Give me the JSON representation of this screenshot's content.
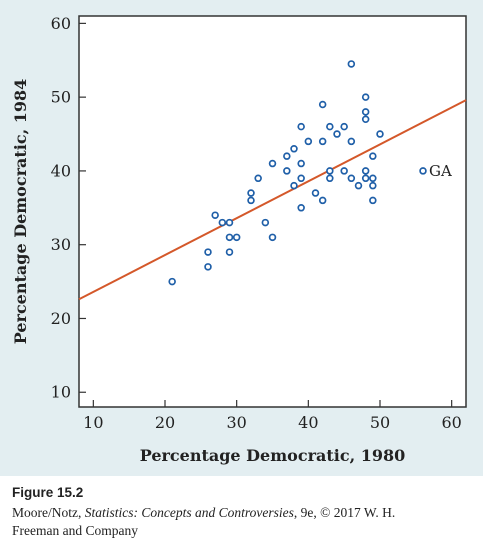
{
  "chart_data": {
    "type": "scatter",
    "xlabel": "Percentage Democratic, 1980",
    "ylabel": "Percentage Democratic, 1984",
    "xlim": [
      8,
      62
    ],
    "ylim": [
      8,
      61
    ],
    "xticks": [
      10,
      20,
      30,
      40,
      50,
      60
    ],
    "yticks": [
      10,
      20,
      30,
      40,
      50,
      60
    ],
    "grid": false,
    "point_color": "#1f5fa8",
    "line_color": "#d4582a",
    "points": [
      [
        21,
        25
      ],
      [
        26,
        27
      ],
      [
        26,
        29
      ],
      [
        27,
        34
      ],
      [
        28,
        33
      ],
      [
        29,
        33
      ],
      [
        29,
        31
      ],
      [
        29,
        29
      ],
      [
        30,
        31
      ],
      [
        32,
        37
      ],
      [
        32,
        36
      ],
      [
        33,
        39
      ],
      [
        34,
        33
      ],
      [
        35,
        31
      ],
      [
        35,
        41
      ],
      [
        37,
        42
      ],
      [
        37,
        40
      ],
      [
        38,
        43
      ],
      [
        38,
        38
      ],
      [
        39,
        46
      ],
      [
        39,
        41
      ],
      [
        39,
        39
      ],
      [
        39,
        35
      ],
      [
        40,
        44
      ],
      [
        41,
        37
      ],
      [
        42,
        49
      ],
      [
        42,
        44
      ],
      [
        42,
        36
      ],
      [
        43,
        46
      ],
      [
        43,
        40
      ],
      [
        43,
        39
      ],
      [
        44,
        45
      ],
      [
        45,
        46
      ],
      [
        45,
        40
      ],
      [
        46,
        54.5
      ],
      [
        46,
        44
      ],
      [
        46,
        39
      ],
      [
        47,
        38
      ],
      [
        48,
        50
      ],
      [
        48,
        48
      ],
      [
        48,
        47
      ],
      [
        48,
        40
      ],
      [
        48,
        39
      ],
      [
        49,
        42
      ],
      [
        49,
        39
      ],
      [
        49,
        38
      ],
      [
        49,
        36
      ],
      [
        50,
        45
      ],
      [
        56,
        40
      ]
    ],
    "regression_line": {
      "x": [
        8,
        62
      ],
      "y": [
        22.6,
        49.6
      ]
    },
    "annotations": [
      {
        "text": "GA",
        "x": 56,
        "y": 40
      }
    ]
  },
  "caption": {
    "figure_label": "Figure 15.2",
    "line1_prefix": "Moore/Notz, ",
    "line1_title": "Statistics: Concepts and Controversies",
    "line1_suffix": ", 9e, © 2017 W. H.",
    "line2": "Freeman and Company"
  }
}
